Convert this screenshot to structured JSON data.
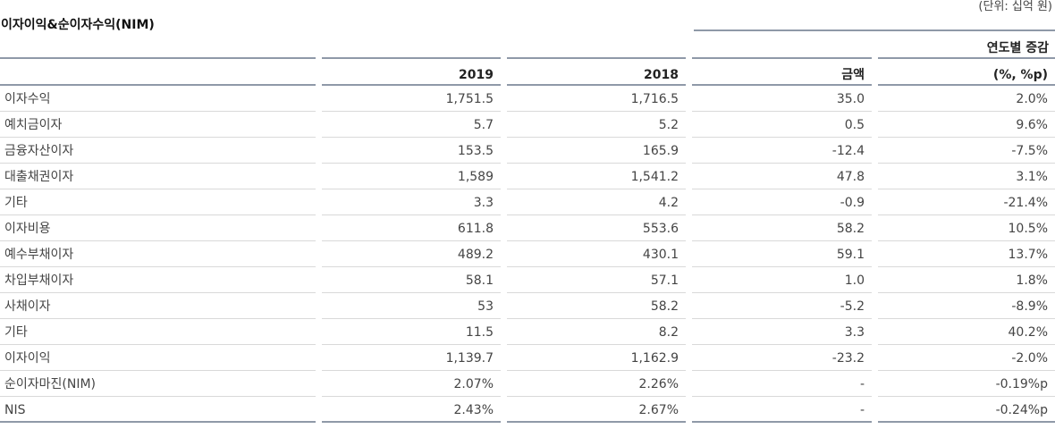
{
  "title": "이자이익&순이자수익(NIM)",
  "unit": "(단위: 십억 원)",
  "group_header": "연도별 증감",
  "headers": [
    "",
    "2019",
    "2018",
    "금액",
    "(%, %p)"
  ],
  "rows": [
    [
      "이자수익",
      "1,751.5",
      "1,716.5",
      "35.0",
      "2.0%"
    ],
    [
      "예치금이자",
      "5.7",
      "5.2",
      "0.5",
      "9.6%"
    ],
    [
      "금융자산이자",
      "153.5",
      "165.9",
      "-12.4",
      "-7.5%"
    ],
    [
      "대출채권이자",
      "1,589",
      "1,541.2",
      "47.8",
      "3.1%"
    ],
    [
      "기타",
      "3.3",
      "4.2",
      "-0.9",
      "-21.4%"
    ],
    [
      "이자비용",
      "611.8",
      "553.6",
      "58.2",
      "10.5%"
    ],
    [
      "예수부채이자",
      "489.2",
      "430.1",
      "59.1",
      "13.7%"
    ],
    [
      "차입부채이자",
      "58.1",
      "57.1",
      "1.0",
      "1.8%"
    ],
    [
      "사채이자",
      "53",
      "58.2",
      "-5.2",
      "-8.9%"
    ],
    [
      "기타",
      "11.5",
      "8.2",
      "3.3",
      "40.2%"
    ],
    [
      "이자이익",
      "1,139.7",
      "1,162.9",
      "-23.2",
      "-2.0%"
    ],
    [
      "순이자마진(NIM)",
      "2.07%",
      "2.26%",
      "-",
      "-0.19%p"
    ],
    [
      "NIS",
      "2.43%",
      "2.67%",
      "-",
      "-0.24%p"
    ]
  ]
}
